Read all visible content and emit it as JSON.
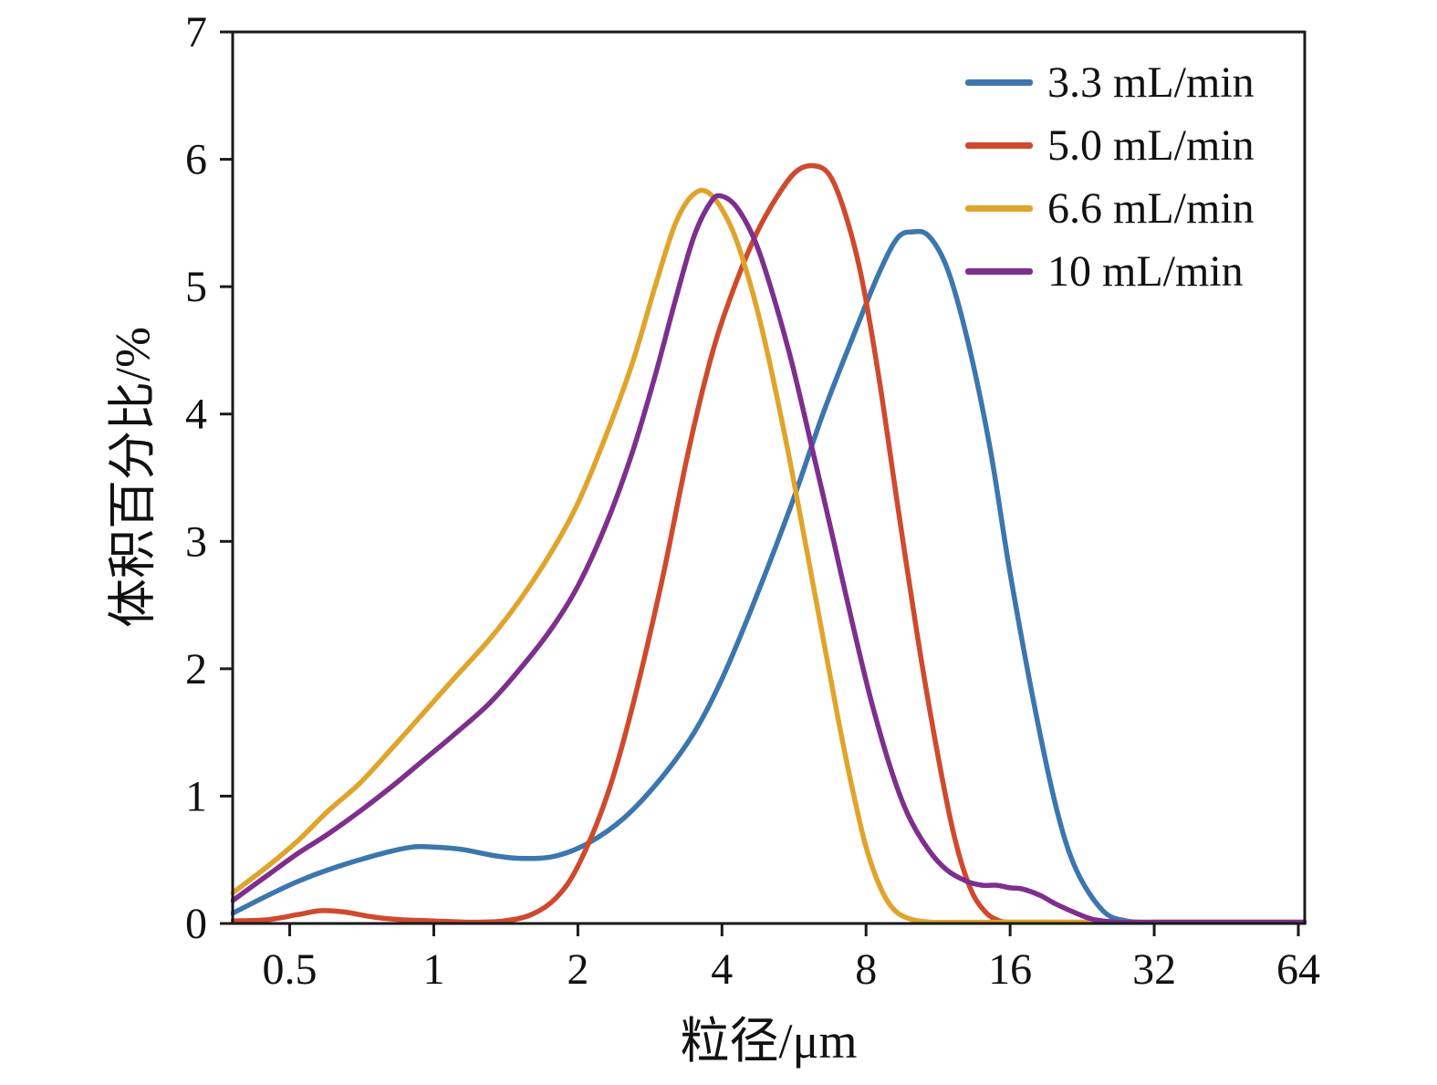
{
  "figure": {
    "background": "#ffffff",
    "axis_color": "#1a1a1a",
    "text_color": "#111111"
  },
  "chart_data": {
    "type": "line",
    "title": "",
    "xlabel": "粒径/μm",
    "ylabel": "体积百分比/%",
    "x_scale": "log2",
    "xlim": [
      0.38,
      66
    ],
    "ylim": [
      0,
      7
    ],
    "grid": false,
    "legend_position": "top-right-inside",
    "x_ticks": [
      {
        "value": 0.5,
        "label": "0.5"
      },
      {
        "value": 1,
        "label": "1"
      },
      {
        "value": 2,
        "label": "2"
      },
      {
        "value": 4,
        "label": "4"
      },
      {
        "value": 8,
        "label": "8"
      },
      {
        "value": 16,
        "label": "16"
      },
      {
        "value": 32,
        "label": "32"
      },
      {
        "value": 64,
        "label": "64"
      }
    ],
    "y_ticks": [
      {
        "value": 0,
        "label": "0"
      },
      {
        "value": 1,
        "label": "1"
      },
      {
        "value": 2,
        "label": "2"
      },
      {
        "value": 3,
        "label": "3"
      },
      {
        "value": 4,
        "label": "4"
      },
      {
        "value": 5,
        "label": "5"
      },
      {
        "value": 6,
        "label": "6"
      },
      {
        "value": 7,
        "label": "7"
      }
    ],
    "series": [
      {
        "name": "3.3 mL/min",
        "color": "#3c76af",
        "x": [
          0.38,
          0.45,
          0.52,
          0.6,
          0.7,
          0.8,
          0.9,
          1.0,
          1.15,
          1.35,
          1.55,
          1.8,
          2.1,
          2.5,
          3.0,
          3.5,
          4.0,
          4.7,
          5.6,
          6.5,
          7.5,
          8.5,
          9.3,
          10.0,
          10.8,
          11.8,
          13.0,
          14.5,
          16.0,
          18.0,
          20.0,
          22.0,
          25.0,
          28.0,
          32.0,
          40.0,
          52.0,
          66.0
        ],
        "y": [
          0.08,
          0.22,
          0.33,
          0.42,
          0.5,
          0.56,
          0.6,
          0.6,
          0.58,
          0.53,
          0.51,
          0.53,
          0.63,
          0.83,
          1.15,
          1.5,
          1.92,
          2.55,
          3.3,
          4.0,
          4.6,
          5.1,
          5.38,
          5.43,
          5.4,
          5.15,
          4.6,
          3.75,
          2.75,
          1.7,
          0.9,
          0.42,
          0.1,
          0.02,
          0.01,
          0.01,
          0.01,
          0.01
        ]
      },
      {
        "name": "5.0 mL/min",
        "color": "#cf4a2d",
        "x": [
          0.38,
          0.45,
          0.52,
          0.58,
          0.65,
          0.75,
          0.85,
          1.0,
          1.2,
          1.4,
          1.6,
          1.8,
          2.0,
          2.3,
          2.6,
          3.0,
          3.4,
          3.8,
          4.2,
          4.7,
          5.2,
          5.7,
          6.2,
          6.7,
          7.2,
          7.8,
          8.5,
          9.3,
          10.2,
          11.2,
          12.2,
          13.2,
          14.2,
          15.2,
          16.0,
          18.0,
          22.0,
          32.0,
          48.0,
          66.0
        ],
        "y": [
          0.02,
          0.03,
          0.07,
          0.1,
          0.09,
          0.05,
          0.03,
          0.02,
          0.01,
          0.02,
          0.07,
          0.2,
          0.45,
          1.0,
          1.7,
          2.7,
          3.7,
          4.45,
          4.95,
          5.4,
          5.7,
          5.9,
          5.95,
          5.88,
          5.6,
          5.1,
          4.3,
          3.3,
          2.3,
          1.4,
          0.7,
          0.28,
          0.09,
          0.02,
          0.01,
          0.01,
          0.01,
          0.01,
          0.01,
          0.01
        ]
      },
      {
        "name": "6.6 mL/min",
        "color": "#e0a42c",
        "x": [
          0.38,
          0.45,
          0.52,
          0.6,
          0.7,
          0.82,
          0.95,
          1.1,
          1.3,
          1.5,
          1.75,
          2.0,
          2.3,
          2.6,
          2.9,
          3.2,
          3.5,
          3.8,
          4.2,
          4.6,
          5.0,
          5.5,
          6.0,
          6.5,
          7.0,
          7.5,
          8.0,
          8.6,
          9.2,
          10.0,
          11.0,
          12.5,
          16.0,
          32.0,
          66.0
        ],
        "y": [
          0.24,
          0.45,
          0.65,
          0.88,
          1.1,
          1.38,
          1.65,
          1.92,
          2.22,
          2.52,
          2.9,
          3.3,
          3.85,
          4.4,
          5.0,
          5.5,
          5.73,
          5.72,
          5.45,
          5.0,
          4.45,
          3.7,
          2.95,
          2.25,
          1.6,
          1.05,
          0.6,
          0.27,
          0.1,
          0.03,
          0.01,
          0.01,
          0.01,
          0.01,
          0.01
        ]
      },
      {
        "name": "10 mL/min",
        "color": "#7e2f8e",
        "x": [
          0.38,
          0.45,
          0.52,
          0.6,
          0.7,
          0.82,
          0.95,
          1.1,
          1.3,
          1.5,
          1.75,
          2.0,
          2.3,
          2.6,
          2.9,
          3.2,
          3.5,
          3.8,
          4.0,
          4.3,
          4.7,
          5.1,
          5.6,
          6.2,
          6.8,
          7.5,
          8.2,
          9.0,
          9.8,
          10.8,
          11.8,
          13.0,
          14.0,
          15.0,
          16.0,
          17.0,
          18.5,
          20.0,
          22.0,
          24.0,
          27.0,
          32.0,
          48.0,
          66.0
        ],
        "y": [
          0.18,
          0.38,
          0.55,
          0.7,
          0.88,
          1.08,
          1.28,
          1.48,
          1.72,
          1.98,
          2.3,
          2.65,
          3.15,
          3.7,
          4.3,
          4.9,
          5.4,
          5.67,
          5.71,
          5.62,
          5.35,
          4.95,
          4.4,
          3.7,
          3.05,
          2.35,
          1.75,
          1.22,
          0.85,
          0.58,
          0.42,
          0.33,
          0.3,
          0.3,
          0.28,
          0.27,
          0.22,
          0.15,
          0.08,
          0.03,
          0.01,
          0.01,
          0.01,
          0.01
        ]
      }
    ]
  }
}
